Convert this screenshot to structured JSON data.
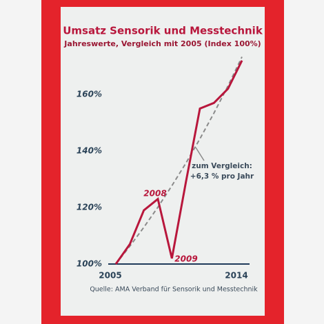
{
  "chart_data": {
    "type": "line",
    "title": "Umsatz Sensorik und Messtechnik",
    "subtitle": "Jahreswerte, Vergleich mit 2005 (Index 100%)",
    "source": "Quelle: AMA Verband für Sensorik und Messtechnik",
    "x": [
      2005,
      2006,
      2007,
      2008,
      2009,
      2010,
      2011,
      2012,
      2013,
      2014
    ],
    "series": [
      {
        "color": "#b8173c",
        "style": "solid",
        "values": [
          100,
          107,
          119,
          123,
          102,
          129,
          155,
          157,
          162,
          172
        ]
      },
      {
        "color": "#8a8a8a",
        "style": "dashed",
        "values": [
          100,
          106.3,
          113,
          120.1,
          127.7,
          135.7,
          144.3,
          153.4,
          163,
          173.3
        ]
      }
    ],
    "annotations": [
      "2008",
      "2009",
      "zum Vergleich:",
      "+6,3 % pro Jahr"
    ],
    "xlim": [
      2005,
      2014
    ],
    "xticks": [
      2005,
      2014
    ],
    "ylim": [
      95,
      178
    ],
    "yticks": [
      {
        "value": 100,
        "label": "100%"
      },
      {
        "value": 120,
        "label": "120%"
      },
      {
        "value": 140,
        "label": "140%"
      },
      {
        "value": 160,
        "label": "160%"
      }
    ],
    "grid": false
  }
}
